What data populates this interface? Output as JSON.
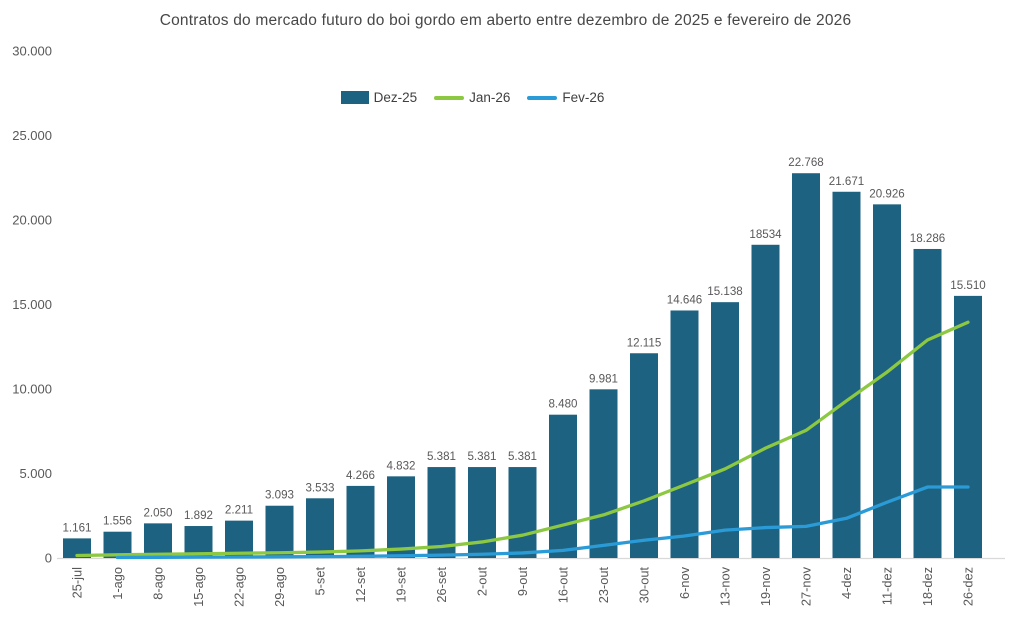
{
  "chart_data": {
    "type": "bar",
    "title": "Contratos do mercado futuro do boi gordo em aberto entre dezembro de 2025 e fevereiro de 2026",
    "categories": [
      "25-jul",
      "1-ago",
      "8-ago",
      "15-ago",
      "22-ago",
      "29-ago",
      "5-set",
      "12-set",
      "19-set",
      "26-set",
      "2-out",
      "9-out",
      "16-out",
      "23-out",
      "30-out",
      "6-nov",
      "13-nov",
      "19-nov",
      "27-nov",
      "4-dez",
      "11-dez",
      "18-dez",
      "26-dez"
    ],
    "series": [
      {
        "name": "Dez-25",
        "render": "bar",
        "color": "#1d6280",
        "values": [
          1161,
          1556,
          2050,
          1892,
          2211,
          3093,
          3533,
          4266,
          4832,
          5381,
          5381,
          5381,
          8480,
          9981,
          12115,
          14646,
          15138,
          18534,
          22768,
          21671,
          20926,
          18286,
          15510
        ],
        "labels": [
          "1.161",
          "1.556",
          "2.050",
          "1.892",
          "2.211",
          "3.093",
          "3.533",
          "4.266",
          "4.832",
          "5.381",
          "5.381",
          "5.381",
          "8.480",
          "9.981",
          "12.115",
          "14.646",
          "15.138",
          "18534",
          "22.768",
          "21.671",
          "20.926",
          "18.286",
          "15.510"
        ]
      },
      {
        "name": "Jan-26",
        "render": "line",
        "color": "#8cc841",
        "values": [
          150,
          190,
          220,
          250,
          280,
          310,
          350,
          420,
          530,
          680,
          950,
          1350,
          1950,
          2550,
          3380,
          4320,
          5270,
          6500,
          7550,
          9300,
          11000,
          12900,
          13950
        ]
      },
      {
        "name": "Fev-26",
        "render": "line",
        "color": "#2b9bd7",
        "values": [
          null,
          30,
          40,
          50,
          60,
          70,
          80,
          100,
          130,
          170,
          220,
          300,
          450,
          750,
          1050,
          1300,
          1650,
          1800,
          1870,
          2350,
          3300,
          4200,
          4200
        ]
      }
    ],
    "y_axis": {
      "min": 0,
      "max": 30000,
      "step": 5000,
      "tick_labels": [
        "0",
        "5.000",
        "10.000",
        "15.000",
        "20.000",
        "25.000",
        "30.000"
      ]
    },
    "legend_position": "top",
    "grid": false,
    "colors": {
      "background": "#ffffff",
      "title_text": "#474747",
      "axis_text": "#595959",
      "data_label_text": "#595959",
      "axis_line": "#d9d9d9",
      "bar": "#1d6280",
      "line_jan": "#8cc841",
      "line_fev": "#2b9bd7"
    }
  }
}
